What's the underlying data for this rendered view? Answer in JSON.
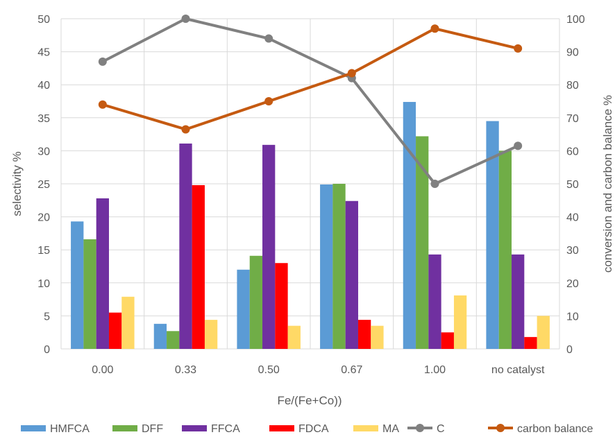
{
  "chart_data": {
    "type": "bar",
    "categories": [
      "0.00",
      "0.33",
      "0.50",
      "0.67",
      "1.00",
      "no catalyst"
    ],
    "xlabel": "Fe/(Fe+Co))",
    "ylabel": "selectivity %",
    "y2label": "conversion and carbon balance %",
    "ylim": [
      0,
      50
    ],
    "y2lim": [
      0,
      100
    ],
    "yticks": [
      "0",
      "5",
      "10",
      "15",
      "20",
      "25",
      "30",
      "35",
      "40",
      "45",
      "50"
    ],
    "y2ticks": [
      "0",
      "10",
      "20",
      "30",
      "40",
      "50",
      "60",
      "70",
      "80",
      "90",
      "100"
    ],
    "grid": true,
    "legend_position": "bottom",
    "series": [
      {
        "name": "HMFCA",
        "type": "bar",
        "axis": "left",
        "color": "#5B9BD5",
        "values": [
          19.3,
          3.8,
          12.0,
          24.9,
          37.4,
          34.5
        ]
      },
      {
        "name": "DFF",
        "type": "bar",
        "axis": "left",
        "color": "#70AD47",
        "values": [
          16.6,
          2.7,
          14.1,
          25.0,
          32.2,
          30.0
        ]
      },
      {
        "name": "FFCA",
        "type": "bar",
        "axis": "left",
        "color": "#7030A0",
        "values": [
          22.8,
          31.1,
          30.9,
          22.4,
          14.3,
          14.3
        ]
      },
      {
        "name": "FDCA",
        "type": "bar",
        "axis": "left",
        "color": "#FF0000",
        "values": [
          5.5,
          24.8,
          13.0,
          4.4,
          2.5,
          1.8
        ]
      },
      {
        "name": "MA",
        "type": "bar",
        "axis": "left",
        "color": "#FFD966",
        "values": [
          7.9,
          4.4,
          3.5,
          3.5,
          8.1,
          5.0
        ]
      },
      {
        "name": "C",
        "type": "line",
        "axis": "right",
        "color": "#808080",
        "values": [
          87,
          100,
          94,
          82,
          50,
          61.5
        ]
      },
      {
        "name": "carbon balance",
        "type": "line",
        "axis": "right",
        "color": "#C55A11",
        "values": [
          74,
          66.5,
          75,
          83.5,
          97,
          91
        ]
      }
    ]
  }
}
